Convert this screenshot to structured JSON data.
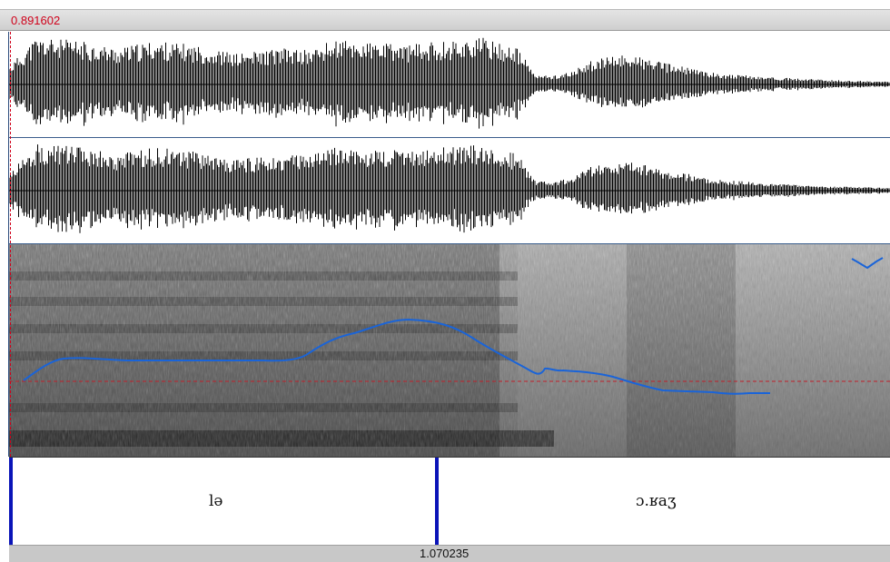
{
  "cursor": {
    "time_label": "0.891602"
  },
  "tier": {
    "intervals": [
      {
        "text": "lə"
      },
      {
        "text": "ɔ.ʁaʒ"
      }
    ]
  },
  "selection": {
    "boundary_time_label": "1.070235"
  },
  "colors": {
    "cursor": "#d0021b",
    "pitch_track": "#1a64d8",
    "interval_boundary": "#0a14b8",
    "separator": "#3a5d8c"
  },
  "icons": {}
}
